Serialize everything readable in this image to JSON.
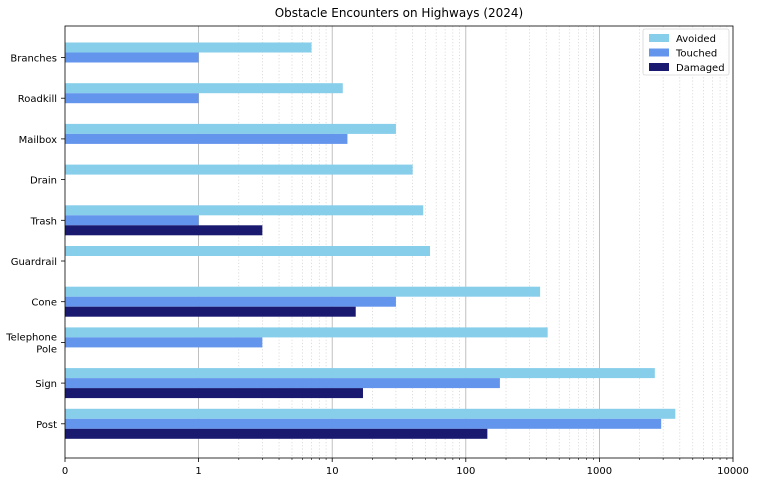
{
  "chart_data": {
    "type": "bar",
    "orientation": "horizontal",
    "title": "Obstacle Encounters on Highways (2024)",
    "xlabel": "",
    "ylabel": "",
    "x_scale": "log",
    "xlim": [
      0,
      10000
    ],
    "x_ticks": [
      {
        "value": 0,
        "label": "0"
      },
      {
        "value": 1,
        "label": "1"
      },
      {
        "value": 10,
        "label": "10"
      },
      {
        "value": 100,
        "label": "100"
      },
      {
        "value": 1000,
        "label": "1000"
      },
      {
        "value": 10000,
        "label": "10000"
      }
    ],
    "grid": "vertical, major and minor (dotted)",
    "legend_position": "top-right",
    "categories": [
      "Branches",
      "Roadkill",
      "Mailbox",
      "Drain",
      "Trash",
      "Guardrail",
      "Cone",
      "Telephone\nPole",
      "Sign",
      "Post"
    ],
    "series": [
      {
        "name": "Avoided",
        "color": "#87CEEB",
        "values": [
          7,
          12,
          30,
          40,
          48,
          54,
          360,
          410,
          2600,
          3700
        ]
      },
      {
        "name": "Touched",
        "color": "#6495ED",
        "values": [
          1,
          1,
          13,
          0,
          1,
          0,
          30,
          3,
          180,
          2900
        ]
      },
      {
        "name": "Damaged",
        "color": "#191970",
        "values": [
          0,
          0,
          0,
          0,
          3,
          0,
          15,
          0,
          17,
          145
        ]
      }
    ]
  }
}
